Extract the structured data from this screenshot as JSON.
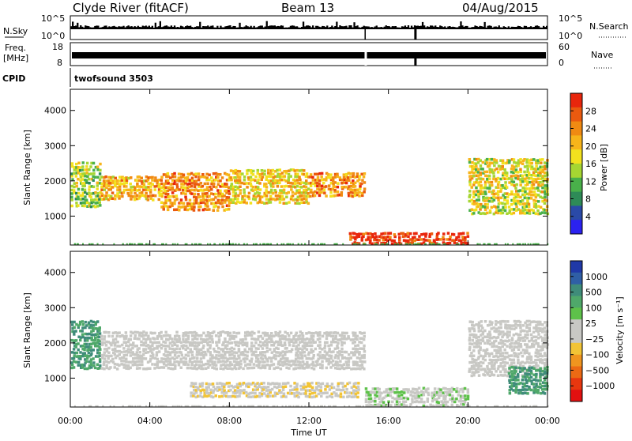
{
  "header": {
    "title": "Clyde River (fitACF)",
    "beam": "Beam 13",
    "date": "04/Aug/2015"
  },
  "strips": {
    "nsky": {
      "label": "N.Sky",
      "ticks": [
        "10^5",
        "10^0"
      ]
    },
    "nsearch": {
      "label": "N.Search",
      "ticks": [
        "10^5",
        "10^0"
      ]
    },
    "freq": {
      "label_line1": "Freq.",
      "label_line2": "[MHz]",
      "ticks": [
        "18",
        "8"
      ]
    },
    "nave": {
      "label": "Nave",
      "ticks": [
        "60",
        "0"
      ]
    },
    "cpid": {
      "label": "CPID",
      "value": "twofsound 3503"
    }
  },
  "panels": {
    "power": {
      "ylabel": "Slant Range [km]",
      "yticks": [
        "4000",
        "3000",
        "2000",
        "1000"
      ]
    },
    "velocity": {
      "ylabel": "Slant Range [km]",
      "yticks": [
        "4000",
        "3000",
        "2000",
        "1000"
      ]
    }
  },
  "xaxis": {
    "ticks": [
      "00:00",
      "04:00",
      "08:00",
      "12:00",
      "16:00",
      "20:00",
      "00:00"
    ],
    "label": "Time UT"
  },
  "colorbars": {
    "power": {
      "label": "Power [dB]",
      "ticks": [
        "28",
        "24",
        "20",
        "16",
        "12",
        "8",
        "4"
      ],
      "colors": [
        "#2b22f0",
        "#2a4aa8",
        "#2e8b57",
        "#49b04a",
        "#a6d632",
        "#f2e11e",
        "#f7b41a",
        "#f08a12",
        "#ea5a0f",
        "#e8260c"
      ]
    },
    "velocity": {
      "label": "Velocity [m s⁻¹]",
      "ticks": [
        "1000",
        "500",
        "100",
        "25",
        "−25",
        "−100",
        "−500",
        "−1000"
      ],
      "colors": [
        "#2039a8",
        "#2f5fa6",
        "#3f8c7a",
        "#4fa86a",
        "#5ec14a",
        "#c8c8c4",
        "#c8c8c4",
        "#f2c436",
        "#f0951f",
        "#ec6a14",
        "#e8370f",
        "#e21010"
      ]
    }
  },
  "chart_data": [
    {
      "type": "heatmap",
      "title": "Power",
      "xlabel": "Time UT",
      "ylabel": "Slant Range [km]",
      "xlim": [
        "00:00",
        "24:00"
      ],
      "ylim": [
        180,
        4600
      ],
      "colorbar": {
        "label": "Power [dB]",
        "range": [
          0,
          30
        ]
      },
      "regions": [
        {
          "t": [
            0.0,
            1.5
          ],
          "range": [
            1300,
            2600
          ],
          "value": 14
        },
        {
          "t": [
            1.5,
            4.5
          ],
          "range": [
            1500,
            2200
          ],
          "value": 20
        },
        {
          "t": [
            4.5,
            8.0
          ],
          "range": [
            1200,
            2300
          ],
          "value": 22
        },
        {
          "t": [
            8.0,
            12.0
          ],
          "range": [
            1400,
            2400
          ],
          "value": 18
        },
        {
          "t": [
            12.0,
            14.8
          ],
          "range": [
            1600,
            2300
          ],
          "value": 22
        },
        {
          "t": [
            14.0,
            20.0
          ],
          "range": [
            250,
            600
          ],
          "value": 28
        },
        {
          "t": [
            20.0,
            24.0
          ],
          "range": [
            1100,
            2700
          ],
          "value": 16
        }
      ]
    },
    {
      "type": "heatmap",
      "title": "Velocity",
      "xlabel": "Time UT",
      "ylabel": "Slant Range [km]",
      "xlim": [
        "00:00",
        "24:00"
      ],
      "ylim": [
        180,
        4600
      ],
      "colorbar": {
        "label": "Velocity [m s⁻¹]",
        "range": [
          -1000,
          1000
        ]
      },
      "regions": [
        {
          "t": [
            0.0,
            1.5
          ],
          "range": [
            1300,
            2700
          ],
          "value": 500
        },
        {
          "t": [
            1.5,
            14.8
          ],
          "range": [
            1300,
            2400
          ],
          "value": 0
        },
        {
          "t": [
            6.0,
            14.5
          ],
          "range": [
            500,
            950
          ],
          "value": -100
        },
        {
          "t": [
            14.8,
            20.0
          ],
          "range": [
            250,
            800
          ],
          "value": 100
        },
        {
          "t": [
            20.0,
            24.0
          ],
          "range": [
            1100,
            2700
          ],
          "value": 0
        },
        {
          "t": [
            22.0,
            24.0
          ],
          "range": [
            600,
            1400
          ],
          "value": 500
        }
      ]
    }
  ]
}
